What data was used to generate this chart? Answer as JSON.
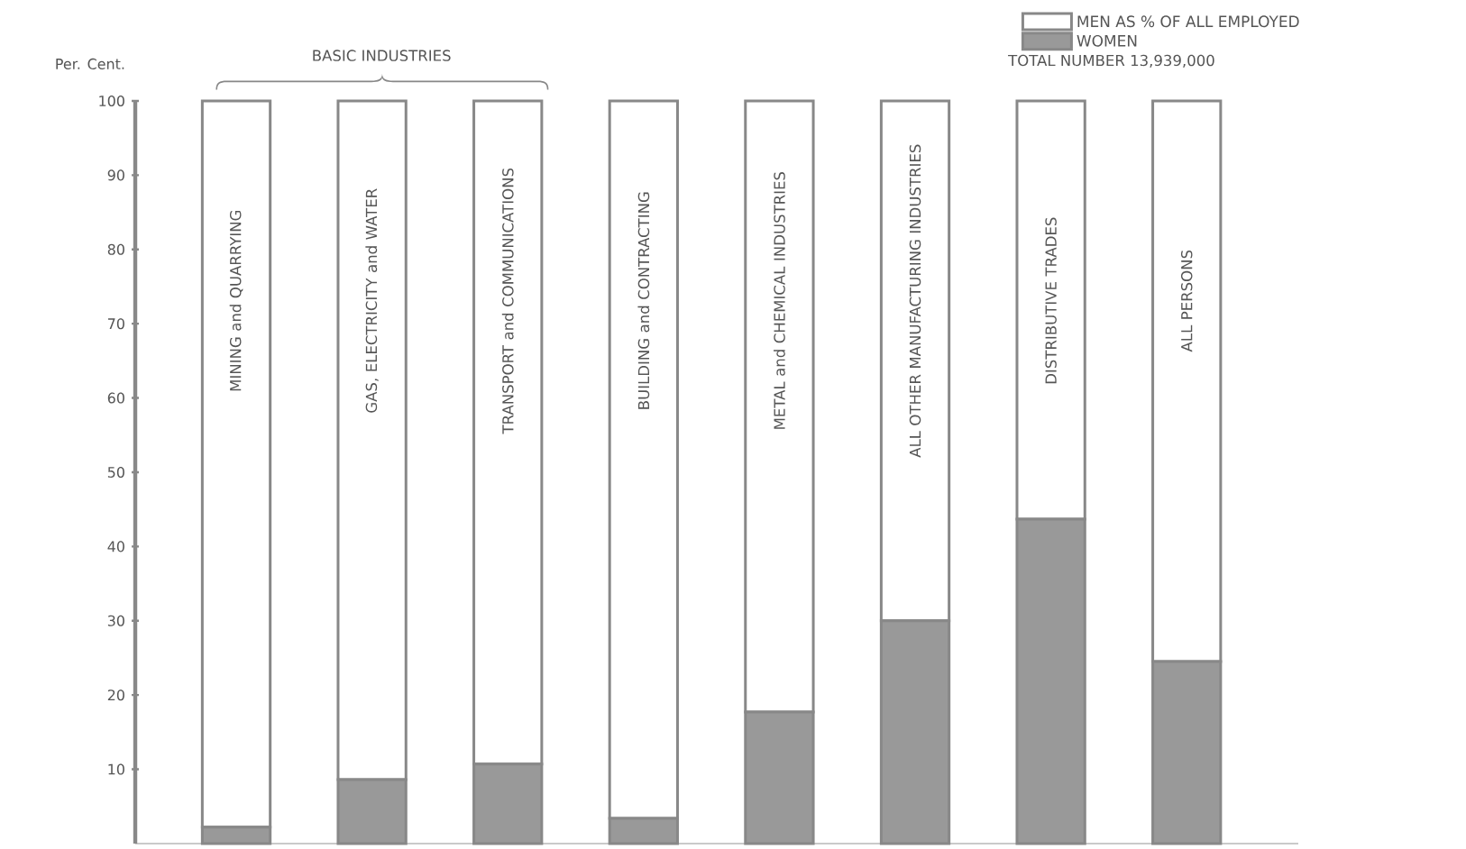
{
  "chart_data": {
    "type": "bar",
    "stacked": true,
    "ylabel": "Per. Cent.",
    "categories": [
      "MINING and QUARRYING",
      "GAS, ELECTRICITY and WATER",
      "TRANSPORT and COMMUNICATIONS",
      "BUILDING and CONTRACTING",
      "METAL and CHEMICAL INDUSTRIES",
      "ALL OTHER MANUFACTURING INDUSTRIES",
      "DISTRIBUTIVE TRADES",
      "ALL PERSONS"
    ],
    "series": [
      {
        "name": "WOMEN",
        "color": "#999999",
        "values": [
          2.2,
          8.6,
          10.7,
          3.4,
          17.7,
          30.0,
          43.7,
          24.5
        ]
      },
      {
        "name": "MEN AS % OF ALL EMPLOYED",
        "color": "#ffffff",
        "values": [
          97.8,
          91.4,
          89.3,
          96.6,
          82.3,
          70.0,
          56.3,
          75.5
        ]
      }
    ],
    "ylim": [
      0,
      100
    ],
    "yticks": [
      10,
      20,
      30,
      40,
      50,
      60,
      70,
      80,
      90,
      100
    ],
    "legend": "top right",
    "annotations": [
      "BASIC INDUSTRIES",
      "TOTAL NUMBER 13,939,000"
    ]
  }
}
